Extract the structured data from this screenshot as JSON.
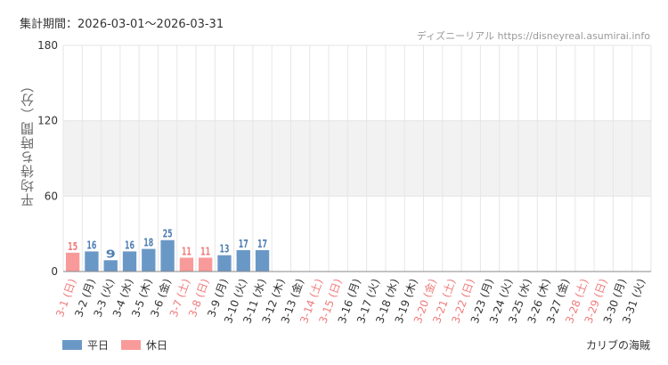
{
  "header": {
    "period": "集計期間：2026-03-01〜2026-03-31",
    "source": "ディズニーリアル https://disneyreal.asumirai.info"
  },
  "footer": {
    "attraction": "カリブの海賊"
  },
  "colors": {
    "weekday": "#6a98c6",
    "holiday": "#f99a9a",
    "weekday_text": "#4f7fb3",
    "holiday_text": "#f07c7c",
    "band": "#f2f2f2",
    "grid": "#e6e6e6"
  },
  "chart_data": {
    "type": "bar",
    "ylabel": "平均待ち時間（分）",
    "ylim": [
      0,
      180
    ],
    "yticks": [
      "0",
      "60",
      "120",
      "180"
    ],
    "grid": true,
    "legend_position": "bottom-left",
    "categories": [
      "3-1 (日)",
      "3-2 (月)",
      "3-3 (火)",
      "3-4 (水)",
      "3-5 (木)",
      "3-6 (金)",
      "3-7 (土)",
      "3-8 (日)",
      "3-9 (月)",
      "3-10 (火)",
      "3-11 (水)",
      "3-12 (木)",
      "3-13 (金)",
      "3-14 (土)",
      "3-15 (日)",
      "3-16 (月)",
      "3-17 (火)",
      "3-18 (水)",
      "3-19 (木)",
      "3-20 (金)",
      "3-21 (土)",
      "3-22 (日)",
      "3-23 (月)",
      "3-24 (火)",
      "3-25 (水)",
      "3-26 (木)",
      "3-27 (金)",
      "3-28 (土)",
      "3-29 (日)",
      "3-30 (月)",
      "3-31 (火)"
    ],
    "holiday_flags": [
      true,
      false,
      false,
      false,
      false,
      false,
      true,
      true,
      false,
      false,
      false,
      false,
      false,
      true,
      true,
      false,
      false,
      false,
      false,
      true,
      true,
      true,
      false,
      false,
      false,
      false,
      false,
      true,
      true,
      false,
      false
    ],
    "values": [
      15,
      16,
      9,
      16,
      18,
      25,
      11,
      11,
      13,
      17,
      17,
      null,
      null,
      null,
      null,
      null,
      null,
      null,
      null,
      null,
      null,
      null,
      null,
      null,
      null,
      null,
      null,
      null,
      null,
      null,
      null
    ],
    "series": [
      {
        "name": "平日"
      },
      {
        "name": "休日"
      }
    ]
  }
}
